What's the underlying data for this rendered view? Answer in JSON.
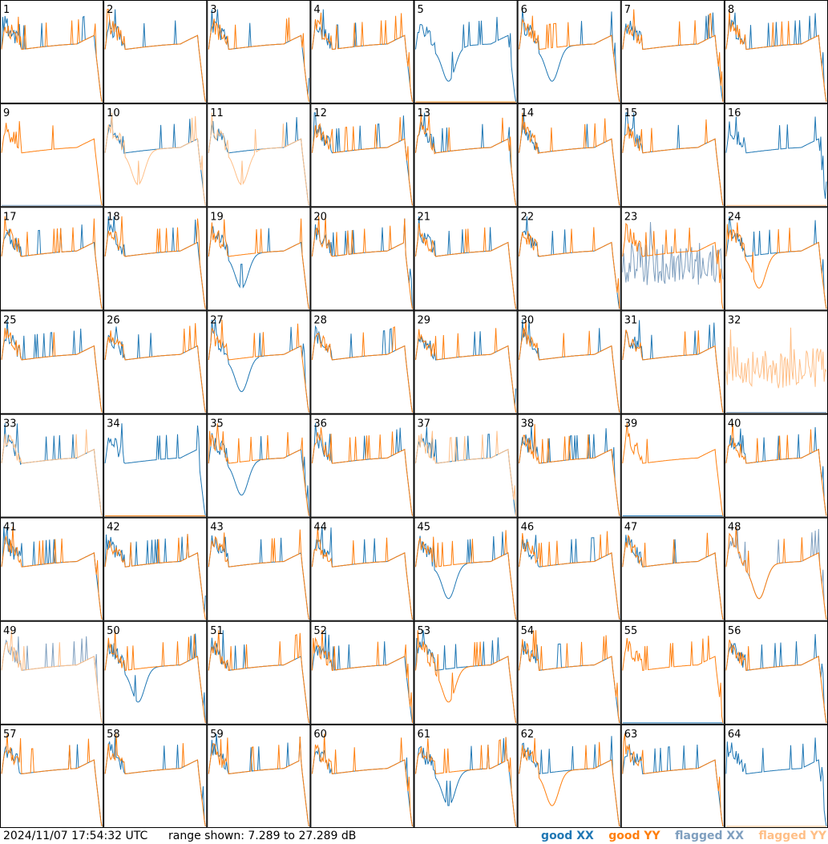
{
  "footer": {
    "timestamp": "2024/11/07 17:54:32 UTC",
    "range_prefix": "range shown:",
    "range_min": "7.289",
    "range_to": "to",
    "range_max": "27.289",
    "range_unit": "dB",
    "legend": [
      "good XX",
      "good YY",
      "flagged XX",
      "flagged YY"
    ]
  },
  "colors": {
    "good_xx": "#1f77b4",
    "good_yy": "#ff7f0e",
    "flagged_xx": "#7f9fbf",
    "flagged_yy": "#ffbf87"
  },
  "chart_data": {
    "type": "line",
    "layout": "small-multiples-8x8",
    "ylim_db": [
      7.289,
      27.289
    ],
    "panels": [
      {
        "id": 1,
        "label": "1",
        "xx": "good",
        "yy": "good",
        "xx_shape": "a",
        "yy_shape": "a"
      },
      {
        "id": 2,
        "label": "2",
        "xx": "good",
        "yy": "good",
        "xx_shape": "a",
        "yy_shape": "a"
      },
      {
        "id": 3,
        "label": "3",
        "xx": "good",
        "yy": "good",
        "xx_shape": "a",
        "yy_shape": "a"
      },
      {
        "id": 4,
        "label": "4",
        "xx": "good",
        "yy": "good",
        "xx_shape": "a",
        "yy_shape": "a"
      },
      {
        "id": 5,
        "label": "5",
        "xx": "good",
        "yy": "good",
        "xx_shape": "dip",
        "yy_shape": "dead"
      },
      {
        "id": 6,
        "label": "6",
        "xx": "good",
        "yy": "good",
        "xx_shape": "dip",
        "yy_shape": "a"
      },
      {
        "id": 7,
        "label": "7",
        "xx": "good",
        "yy": "good",
        "xx_shape": "a",
        "yy_shape": "a"
      },
      {
        "id": 8,
        "label": "8",
        "xx": "good",
        "yy": "good",
        "xx_shape": "a",
        "yy_shape": "a"
      },
      {
        "id": 9,
        "label": "9",
        "xx": "flagged",
        "yy": "good",
        "xx_shape": "dead",
        "yy_shape": "a"
      },
      {
        "id": 10,
        "label": "10",
        "xx": "good",
        "yy": "flagged",
        "xx_shape": "a",
        "yy_shape": "dip"
      },
      {
        "id": 11,
        "label": "11",
        "xx": "good",
        "yy": "flagged",
        "xx_shape": "a",
        "yy_shape": "dip"
      },
      {
        "id": 12,
        "label": "12",
        "xx": "good",
        "yy": "good",
        "xx_shape": "a",
        "yy_shape": "a"
      },
      {
        "id": 13,
        "label": "13",
        "xx": "good",
        "yy": "good",
        "xx_shape": "a",
        "yy_shape": "a"
      },
      {
        "id": 14,
        "label": "14",
        "xx": "good",
        "yy": "good",
        "xx_shape": "a",
        "yy_shape": "a"
      },
      {
        "id": 15,
        "label": "15",
        "xx": "good",
        "yy": "good",
        "xx_shape": "a",
        "yy_shape": "a"
      },
      {
        "id": 16,
        "label": "16",
        "xx": "good",
        "yy": "flagged",
        "xx_shape": "a",
        "yy_shape": "dead"
      },
      {
        "id": 17,
        "label": "17",
        "xx": "good",
        "yy": "good",
        "xx_shape": "a",
        "yy_shape": "a"
      },
      {
        "id": 18,
        "label": "18",
        "xx": "good",
        "yy": "good",
        "xx_shape": "a",
        "yy_shape": "a"
      },
      {
        "id": 19,
        "label": "19",
        "xx": "good",
        "yy": "good",
        "xx_shape": "dip",
        "yy_shape": "a"
      },
      {
        "id": 20,
        "label": "20",
        "xx": "good",
        "yy": "good",
        "xx_shape": "a",
        "yy_shape": "a"
      },
      {
        "id": 21,
        "label": "21",
        "xx": "good",
        "yy": "good",
        "xx_shape": "a",
        "yy_shape": "a"
      },
      {
        "id": 22,
        "label": "22",
        "xx": "good",
        "yy": "good",
        "xx_shape": "a",
        "yy_shape": "a"
      },
      {
        "id": 23,
        "label": "23",
        "xx": "flagged",
        "yy": "good",
        "xx_shape": "noise",
        "yy_shape": "a"
      },
      {
        "id": 24,
        "label": "24",
        "xx": "good",
        "yy": "good",
        "xx_shape": "a",
        "yy_shape": "dip"
      },
      {
        "id": 25,
        "label": "25",
        "xx": "good",
        "yy": "good",
        "xx_shape": "a",
        "yy_shape": "a"
      },
      {
        "id": 26,
        "label": "26",
        "xx": "good",
        "yy": "good",
        "xx_shape": "a",
        "yy_shape": "a"
      },
      {
        "id": 27,
        "label": "27",
        "xx": "good",
        "yy": "good",
        "xx_shape": "dip",
        "yy_shape": "a"
      },
      {
        "id": 28,
        "label": "28",
        "xx": "good",
        "yy": "good",
        "xx_shape": "a",
        "yy_shape": "a"
      },
      {
        "id": 29,
        "label": "29",
        "xx": "good",
        "yy": "good",
        "xx_shape": "a",
        "yy_shape": "a"
      },
      {
        "id": 30,
        "label": "30",
        "xx": "good",
        "yy": "good",
        "xx_shape": "a",
        "yy_shape": "a"
      },
      {
        "id": 31,
        "label": "31",
        "xx": "good",
        "yy": "good",
        "xx_shape": "a",
        "yy_shape": "a"
      },
      {
        "id": 32,
        "label": "32",
        "xx": "flagged",
        "yy": "flagged",
        "xx_shape": "dead",
        "yy_shape": "noise"
      },
      {
        "id": 33,
        "label": "33",
        "xx": "good",
        "yy": "flagged",
        "xx_shape": "a",
        "yy_shape": "a"
      },
      {
        "id": 34,
        "label": "34",
        "xx": "good",
        "yy": "good",
        "xx_shape": "a",
        "yy_shape": "dead"
      },
      {
        "id": 35,
        "label": "35",
        "xx": "good",
        "yy": "good",
        "xx_shape": "dip",
        "yy_shape": "a"
      },
      {
        "id": 36,
        "label": "36",
        "xx": "good",
        "yy": "good",
        "xx_shape": "a",
        "yy_shape": "a"
      },
      {
        "id": 37,
        "label": "37",
        "xx": "good",
        "yy": "flagged",
        "xx_shape": "a",
        "yy_shape": "a"
      },
      {
        "id": 38,
        "label": "38",
        "xx": "good",
        "yy": "good",
        "xx_shape": "a",
        "yy_shape": "a"
      },
      {
        "id": 39,
        "label": "39",
        "xx": "good",
        "yy": "good",
        "xx_shape": "dead",
        "yy_shape": "a"
      },
      {
        "id": 40,
        "label": "40",
        "xx": "good",
        "yy": "good",
        "xx_shape": "a",
        "yy_shape": "a"
      },
      {
        "id": 41,
        "label": "41",
        "xx": "good",
        "yy": "good",
        "xx_shape": "a",
        "yy_shape": "a"
      },
      {
        "id": 42,
        "label": "42",
        "xx": "good",
        "yy": "good",
        "xx_shape": "a",
        "yy_shape": "a"
      },
      {
        "id": 43,
        "label": "43",
        "xx": "good",
        "yy": "good",
        "xx_shape": "a",
        "yy_shape": "a"
      },
      {
        "id": 44,
        "label": "44",
        "xx": "good",
        "yy": "good",
        "xx_shape": "a",
        "yy_shape": "a"
      },
      {
        "id": 45,
        "label": "45",
        "xx": "good",
        "yy": "good",
        "xx_shape": "dip",
        "yy_shape": "a"
      },
      {
        "id": 46,
        "label": "46",
        "xx": "good",
        "yy": "good",
        "xx_shape": "a",
        "yy_shape": "a"
      },
      {
        "id": 47,
        "label": "47",
        "xx": "good",
        "yy": "good",
        "xx_shape": "a",
        "yy_shape": "a"
      },
      {
        "id": 48,
        "label": "48",
        "xx": "flagged",
        "yy": "good",
        "xx_shape": "dip",
        "yy_shape": "dip"
      },
      {
        "id": 49,
        "label": "49",
        "xx": "flagged",
        "yy": "flagged",
        "xx_shape": "a",
        "yy_shape": "a"
      },
      {
        "id": 50,
        "label": "50",
        "xx": "good",
        "yy": "good",
        "xx_shape": "dip",
        "yy_shape": "a"
      },
      {
        "id": 51,
        "label": "51",
        "xx": "good",
        "yy": "good",
        "xx_shape": "a",
        "yy_shape": "a"
      },
      {
        "id": 52,
        "label": "52",
        "xx": "good",
        "yy": "good",
        "xx_shape": "a",
        "yy_shape": "a"
      },
      {
        "id": 53,
        "label": "53",
        "xx": "good",
        "yy": "good",
        "xx_shape": "a",
        "yy_shape": "dip"
      },
      {
        "id": 54,
        "label": "54",
        "xx": "good",
        "yy": "good",
        "xx_shape": "a",
        "yy_shape": "a"
      },
      {
        "id": 55,
        "label": "55",
        "xx": "good",
        "yy": "good",
        "xx_shape": "dead",
        "yy_shape": "a"
      },
      {
        "id": 56,
        "label": "56",
        "xx": "good",
        "yy": "good",
        "xx_shape": "a",
        "yy_shape": "a"
      },
      {
        "id": 57,
        "label": "57",
        "xx": "good",
        "yy": "good",
        "xx_shape": "a",
        "yy_shape": "a"
      },
      {
        "id": 58,
        "label": "58",
        "xx": "good",
        "yy": "good",
        "xx_shape": "a",
        "yy_shape": "a"
      },
      {
        "id": 59,
        "label": "59",
        "xx": "good",
        "yy": "good",
        "xx_shape": "a",
        "yy_shape": "a"
      },
      {
        "id": 60,
        "label": "60",
        "xx": "good",
        "yy": "good",
        "xx_shape": "a",
        "yy_shape": "a"
      },
      {
        "id": 61,
        "label": "61",
        "xx": "good",
        "yy": "good",
        "xx_shape": "dip",
        "yy_shape": "a"
      },
      {
        "id": 62,
        "label": "62",
        "xx": "good",
        "yy": "good",
        "xx_shape": "a",
        "yy_shape": "dip"
      },
      {
        "id": 63,
        "label": "63",
        "xx": "good",
        "yy": "good",
        "xx_shape": "a",
        "yy_shape": "a"
      },
      {
        "id": 64,
        "label": "64",
        "xx": "good",
        "yy": "flagged",
        "xx_shape": "a",
        "yy_shape": "dead"
      }
    ]
  }
}
